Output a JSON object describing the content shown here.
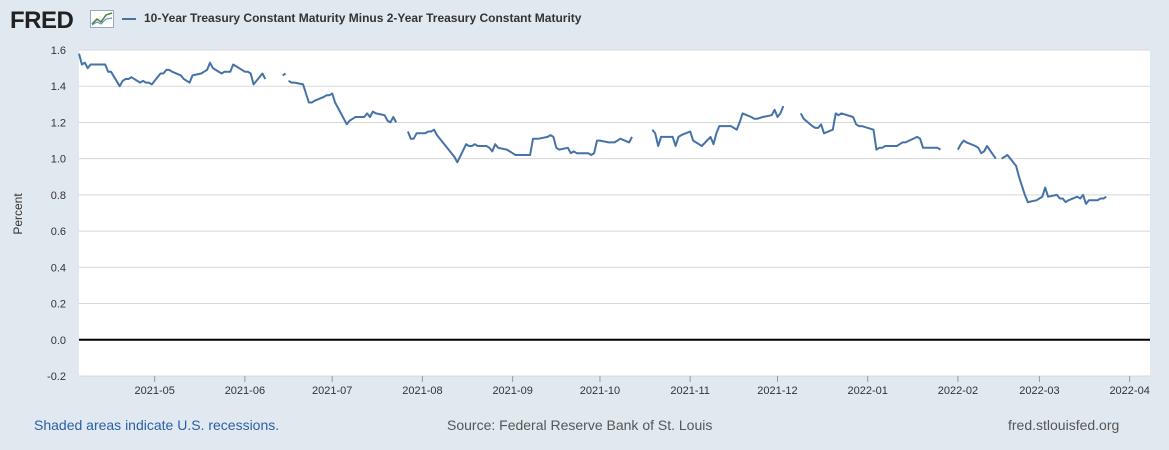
{
  "header": {
    "logo_text": "FRED",
    "logo_icon": "line-chart-icon",
    "series_label": "10-Year Treasury Constant Maturity Minus 2-Year Treasury Constant Maturity"
  },
  "footer": {
    "recession_note": "Shaded areas indicate U.S. recessions.",
    "source": "Source: Federal Reserve Bank of St. Louis",
    "site": "fred.stlouisfed.org"
  },
  "colors": {
    "series": "#4572a7",
    "background": "#e1e9f0",
    "plot_background": "#ffffff",
    "gridline": "#d8d8d8",
    "zero_line": "#000000",
    "link": "#2b5ea7"
  },
  "chart_data": {
    "type": "line",
    "title": "",
    "xlabel": "",
    "ylabel": "Percent",
    "ylim": [
      -0.2,
      1.6
    ],
    "yticks": [
      "-0.2",
      "0.0",
      "0.2",
      "0.4",
      "0.6",
      "0.8",
      "1.0",
      "1.2",
      "1.4",
      "1.6"
    ],
    "xlim": [
      "2021-04-05",
      "2022-04-08"
    ],
    "xticks": [
      "2021-05",
      "2021-06",
      "2021-07",
      "2021-08",
      "2021-09",
      "2021-10",
      "2021-11",
      "2021-12",
      "2022-01",
      "2022-02",
      "2022-03",
      "2022-04"
    ],
    "grid": true,
    "legend": "top",
    "reference_line": 0.0,
    "series": [
      {
        "name": "10-Year Treasury Constant Maturity Minus 2-Year Treasury Constant Maturity",
        "segments": [
          [
            [
              "2021-04-05",
              1.58
            ],
            [
              "2021-04-06",
              1.52
            ],
            [
              "2021-04-07",
              1.53
            ],
            [
              "2021-04-08",
              1.5
            ],
            [
              "2021-04-09",
              1.52
            ],
            [
              "2021-04-12",
              1.52
            ],
            [
              "2021-04-13",
              1.52
            ],
            [
              "2021-04-14",
              1.52
            ],
            [
              "2021-04-15",
              1.48
            ],
            [
              "2021-04-16",
              1.48
            ],
            [
              "2021-04-19",
              1.4
            ],
            [
              "2021-04-20",
              1.43
            ],
            [
              "2021-04-21",
              1.44
            ],
            [
              "2021-04-22",
              1.44
            ],
            [
              "2021-04-23",
              1.45
            ],
            [
              "2021-04-26",
              1.42
            ],
            [
              "2021-04-27",
              1.43
            ],
            [
              "2021-04-28",
              1.42
            ],
            [
              "2021-04-29",
              1.42
            ],
            [
              "2021-04-30",
              1.41
            ],
            [
              "2021-05-03",
              1.47
            ],
            [
              "2021-05-04",
              1.47
            ],
            [
              "2021-05-05",
              1.49
            ],
            [
              "2021-05-06",
              1.49
            ],
            [
              "2021-05-07",
              1.48
            ],
            [
              "2021-05-10",
              1.46
            ],
            [
              "2021-05-11",
              1.44
            ],
            [
              "2021-05-12",
              1.43
            ],
            [
              "2021-05-13",
              1.42
            ],
            [
              "2021-05-14",
              1.46
            ],
            [
              "2021-05-17",
              1.47
            ],
            [
              "2021-05-18",
              1.48
            ],
            [
              "2021-05-19",
              1.49
            ],
            [
              "2021-05-20",
              1.53
            ],
            [
              "2021-05-21",
              1.5
            ],
            [
              "2021-05-24",
              1.47
            ],
            [
              "2021-05-25",
              1.48
            ],
            [
              "2021-05-26",
              1.48
            ],
            [
              "2021-05-27",
              1.48
            ],
            [
              "2021-05-28",
              1.52
            ],
            [
              "2021-06-01",
              1.48
            ],
            [
              "2021-06-02",
              1.48
            ],
            [
              "2021-06-03",
              1.47
            ],
            [
              "2021-06-04",
              1.41
            ],
            [
              "2021-06-07",
              1.47
            ],
            [
              "2021-06-08",
              1.44
            ]
          ],
          [
            [
              "2021-06-14",
              1.46
            ],
            [
              "2021-06-15",
              1.47
            ]
          ],
          [
            [
              "2021-06-16",
              1.43
            ],
            [
              "2021-06-17",
              1.42
            ],
            [
              "2021-06-18",
              1.42
            ],
            [
              "2021-06-21",
              1.41
            ],
            [
              "2021-06-22",
              1.36
            ],
            [
              "2021-06-23",
              1.31
            ],
            [
              "2021-06-24",
              1.31
            ],
            [
              "2021-06-25",
              1.32
            ],
            [
              "2021-06-28",
              1.34
            ],
            [
              "2021-06-29",
              1.35
            ],
            [
              "2021-06-30",
              1.35
            ],
            [
              "2021-07-01",
              1.36
            ],
            [
              "2021-07-02",
              1.31
            ],
            [
              "2021-07-06",
              1.19
            ],
            [
              "2021-07-07",
              1.21
            ],
            [
              "2021-07-08",
              1.22
            ],
            [
              "2021-07-09",
              1.23
            ],
            [
              "2021-07-12",
              1.23
            ],
            [
              "2021-07-13",
              1.25
            ],
            [
              "2021-07-14",
              1.23
            ],
            [
              "2021-07-15",
              1.26
            ],
            [
              "2021-07-16",
              1.25
            ],
            [
              "2021-07-19",
              1.24
            ],
            [
              "2021-07-20",
              1.21
            ],
            [
              "2021-07-21",
              1.2
            ],
            [
              "2021-07-22",
              1.23
            ],
            [
              "2021-07-23",
              1.2
            ]
          ],
          [
            [
              "2021-07-27",
              1.15
            ],
            [
              "2021-07-28",
              1.11
            ],
            [
              "2021-07-29",
              1.11
            ],
            [
              "2021-07-30",
              1.14
            ],
            [
              "2021-08-02",
              1.14
            ],
            [
              "2021-08-03",
              1.15
            ],
            [
              "2021-08-04",
              1.15
            ],
            [
              "2021-08-05",
              1.16
            ],
            [
              "2021-08-06",
              1.13
            ],
            [
              "2021-08-09",
              1.07
            ],
            [
              "2021-08-10",
              1.05
            ],
            [
              "2021-08-11",
              1.03
            ],
            [
              "2021-08-12",
              1.01
            ],
            [
              "2021-08-13",
              0.98
            ],
            [
              "2021-08-16",
              1.08
            ],
            [
              "2021-08-17",
              1.07
            ],
            [
              "2021-08-18",
              1.07
            ],
            [
              "2021-08-19",
              1.08
            ],
            [
              "2021-08-20",
              1.07
            ],
            [
              "2021-08-23",
              1.07
            ],
            [
              "2021-08-24",
              1.06
            ],
            [
              "2021-08-25",
              1.04
            ],
            [
              "2021-08-26",
              1.08
            ],
            [
              "2021-08-27",
              1.06
            ],
            [
              "2021-08-30",
              1.05
            ],
            [
              "2021-08-31",
              1.04
            ],
            [
              "2021-09-01",
              1.03
            ],
            [
              "2021-09-02",
              1.02
            ],
            [
              "2021-09-03",
              1.02
            ],
            [
              "2021-09-07",
              1.02
            ],
            [
              "2021-09-08",
              1.11
            ],
            [
              "2021-09-09",
              1.11
            ],
            [
              "2021-09-10",
              1.11
            ],
            [
              "2021-09-13",
              1.12
            ],
            [
              "2021-09-14",
              1.13
            ],
            [
              "2021-09-15",
              1.12
            ],
            [
              "2021-09-16",
              1.06
            ],
            [
              "2021-09-17",
              1.05
            ],
            [
              "2021-09-20",
              1.06
            ],
            [
              "2021-09-21",
              1.03
            ],
            [
              "2021-09-22",
              1.04
            ],
            [
              "2021-09-23",
              1.03
            ],
            [
              "2021-09-24",
              1.03
            ],
            [
              "2021-09-27",
              1.03
            ],
            [
              "2021-09-28",
              1.02
            ],
            [
              "2021-09-29",
              1.03
            ],
            [
              "2021-09-30",
              1.1
            ],
            [
              "2021-10-01",
              1.1
            ],
            [
              "2021-10-04",
              1.09
            ],
            [
              "2021-10-05",
              1.09
            ],
            [
              "2021-10-06",
              1.09
            ],
            [
              "2021-10-07",
              1.1
            ],
            [
              "2021-10-08",
              1.11
            ],
            [
              "2021-10-11",
              1.09
            ],
            [
              "2021-10-12",
              1.12
            ]
          ],
          [
            [
              "2021-10-19",
              1.16
            ],
            [
              "2021-10-20",
              1.14
            ],
            [
              "2021-10-21",
              1.07
            ],
            [
              "2021-10-22",
              1.12
            ],
            [
              "2021-10-25",
              1.12
            ],
            [
              "2021-10-26",
              1.12
            ],
            [
              "2021-10-27",
              1.07
            ],
            [
              "2021-10-28",
              1.12
            ],
            [
              "2021-10-29",
              1.13
            ],
            [
              "2021-11-01",
              1.15
            ],
            [
              "2021-11-02",
              1.1
            ],
            [
              "2021-11-03",
              1.09
            ],
            [
              "2021-11-04",
              1.08
            ],
            [
              "2021-11-05",
              1.07
            ],
            [
              "2021-11-08",
              1.12
            ],
            [
              "2021-11-09",
              1.08
            ],
            [
              "2021-11-10",
              1.14
            ],
            [
              "2021-11-11",
              1.18
            ],
            [
              "2021-11-12",
              1.18
            ],
            [
              "2021-11-15",
              1.18
            ],
            [
              "2021-11-16",
              1.17
            ],
            [
              "2021-11-17",
              1.16
            ],
            [
              "2021-11-18",
              1.2
            ],
            [
              "2021-11-19",
              1.25
            ],
            [
              "2021-11-22",
              1.23
            ],
            [
              "2021-11-23",
              1.22
            ],
            [
              "2021-11-24",
              1.22
            ],
            [
              "2021-11-26",
              1.23
            ],
            [
              "2021-11-29",
              1.24
            ],
            [
              "2021-11-30",
              1.27
            ],
            [
              "2021-12-01",
              1.23
            ],
            [
              "2021-12-02",
              1.25
            ],
            [
              "2021-12-03",
              1.29
            ]
          ],
          [
            [
              "2021-12-09",
              1.25
            ],
            [
              "2021-12-10",
              1.22
            ],
            [
              "2021-12-13",
              1.18
            ],
            [
              "2021-12-14",
              1.17
            ],
            [
              "2021-12-15",
              1.17
            ],
            [
              "2021-12-16",
              1.19
            ],
            [
              "2021-12-17",
              1.14
            ],
            [
              "2021-12-20",
              1.16
            ],
            [
              "2021-12-21",
              1.25
            ],
            [
              "2021-12-22",
              1.24
            ],
            [
              "2021-12-23",
              1.25
            ],
            [
              "2021-12-27",
              1.23
            ],
            [
              "2021-12-28",
              1.19
            ],
            [
              "2021-12-29",
              1.18
            ],
            [
              "2021-12-30",
              1.18
            ],
            [
              "2022-01-03",
              1.16
            ],
            [
              "2022-01-04",
              1.05
            ],
            [
              "2022-01-05",
              1.06
            ],
            [
              "2022-01-06",
              1.06
            ],
            [
              "2022-01-07",
              1.07
            ],
            [
              "2022-01-10",
              1.07
            ],
            [
              "2022-01-11",
              1.07
            ],
            [
              "2022-01-12",
              1.08
            ],
            [
              "2022-01-13",
              1.09
            ],
            [
              "2022-01-14",
              1.09
            ],
            [
              "2022-01-18",
              1.12
            ],
            [
              "2022-01-19",
              1.11
            ],
            [
              "2022-01-20",
              1.06
            ],
            [
              "2022-01-21",
              1.06
            ],
            [
              "2022-01-24",
              1.06
            ],
            [
              "2022-01-25",
              1.06
            ],
            [
              "2022-01-26",
              1.05
            ]
          ],
          [
            [
              "2022-02-01",
              1.05
            ],
            [
              "2022-02-02",
              1.08
            ],
            [
              "2022-02-03",
              1.1
            ],
            [
              "2022-02-04",
              1.09
            ],
            [
              "2022-02-07",
              1.07
            ],
            [
              "2022-02-08",
              1.06
            ],
            [
              "2022-02-09",
              1.03
            ],
            [
              "2022-02-10",
              1.04
            ],
            [
              "2022-02-11",
              1.07
            ],
            [
              "2022-02-14",
              1.0
            ]
          ],
          [
            [
              "2022-02-16",
              1.0
            ],
            [
              "2022-02-17",
              1.01
            ],
            [
              "2022-02-18",
              1.02
            ],
            [
              "2022-02-21",
              0.96
            ],
            [
              "2022-02-22",
              0.9
            ],
            [
              "2022-02-23",
              0.85
            ],
            [
              "2022-02-24",
              0.8
            ],
            [
              "2022-02-25",
              0.76
            ],
            [
              "2022-02-28",
              0.77
            ],
            [
              "2022-03-01",
              0.78
            ],
            [
              "2022-03-02",
              0.79
            ],
            [
              "2022-03-03",
              0.84
            ],
            [
              "2022-03-04",
              0.79
            ],
            [
              "2022-03-07",
              0.8
            ],
            [
              "2022-03-08",
              0.78
            ],
            [
              "2022-03-09",
              0.78
            ],
            [
              "2022-03-10",
              0.76
            ],
            [
              "2022-03-11",
              0.77
            ],
            [
              "2022-03-14",
              0.79
            ],
            [
              "2022-03-15",
              0.78
            ],
            [
              "2022-03-16",
              0.8
            ],
            [
              "2022-03-17",
              0.75
            ],
            [
              "2022-03-18",
              0.77
            ],
            [
              "2022-03-21",
              0.77
            ],
            [
              "2022-03-22",
              0.78
            ],
            [
              "2022-03-23",
              0.78
            ],
            [
              "2022-03-24",
              0.79
            ]
          ]
        ]
      }
    ]
  }
}
